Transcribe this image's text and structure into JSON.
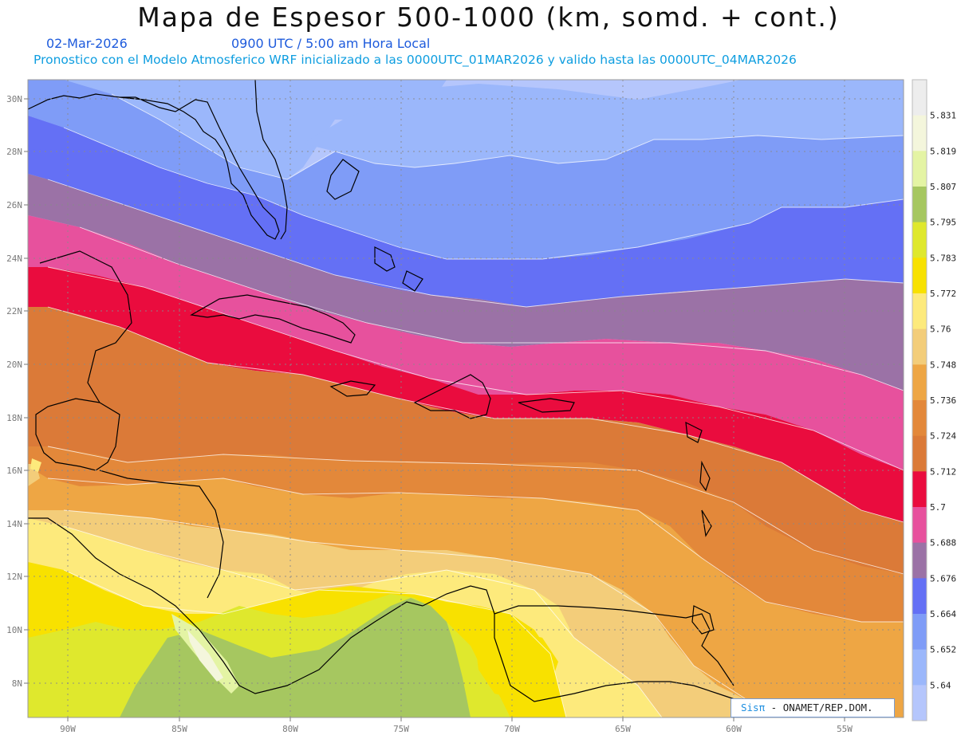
{
  "header": {
    "title": "Mapa de Espesor 500-1000 (km, somd. + cont.)",
    "date": "02-Mar-2026",
    "utc_time": "0900 UTC / 5:00 am Hora Local",
    "forecast_info": "Pronostico con el Modelo Atmosferico WRF inicializado a las 0000UTC_01MAR2026 y valido hasta las  0000UTC_04MAR2026"
  },
  "map": {
    "lat_labels": [
      "30N",
      "28N",
      "26N",
      "24N",
      "22N",
      "20N",
      "18N",
      "16N",
      "14N",
      "12N",
      "10N",
      "8N"
    ],
    "lon_labels": [
      "90W",
      "85W",
      "80W",
      "75W",
      "70W",
      "65W",
      "60W",
      "55W"
    ]
  },
  "colorbar": {
    "labels": [
      "5.831",
      "5.819",
      "5.807",
      "5.795",
      "5.783",
      "5.772",
      "5.76",
      "5.748",
      "5.736",
      "5.724",
      "5.712",
      "5.7",
      "5.688",
      "5.676",
      "5.664",
      "5.652",
      "5.64"
    ],
    "colors": [
      "#ededed",
      "#f4f6dc",
      "#e4f4a4",
      "#a6c760",
      "#dfe82d",
      "#f8e100",
      "#fdea7c",
      "#f3cd7a",
      "#eea644",
      "#e3883a",
      "#db7a38",
      "#ea0c3e",
      "#e7519d",
      "#9b72a6",
      "#6470f5",
      "#7f9cf7",
      "#9bb7fb",
      "#b5c6fc"
    ]
  },
  "credit": {
    "brand": "Sisπ",
    "text": "- ONAMET/REP.DOM."
  }
}
